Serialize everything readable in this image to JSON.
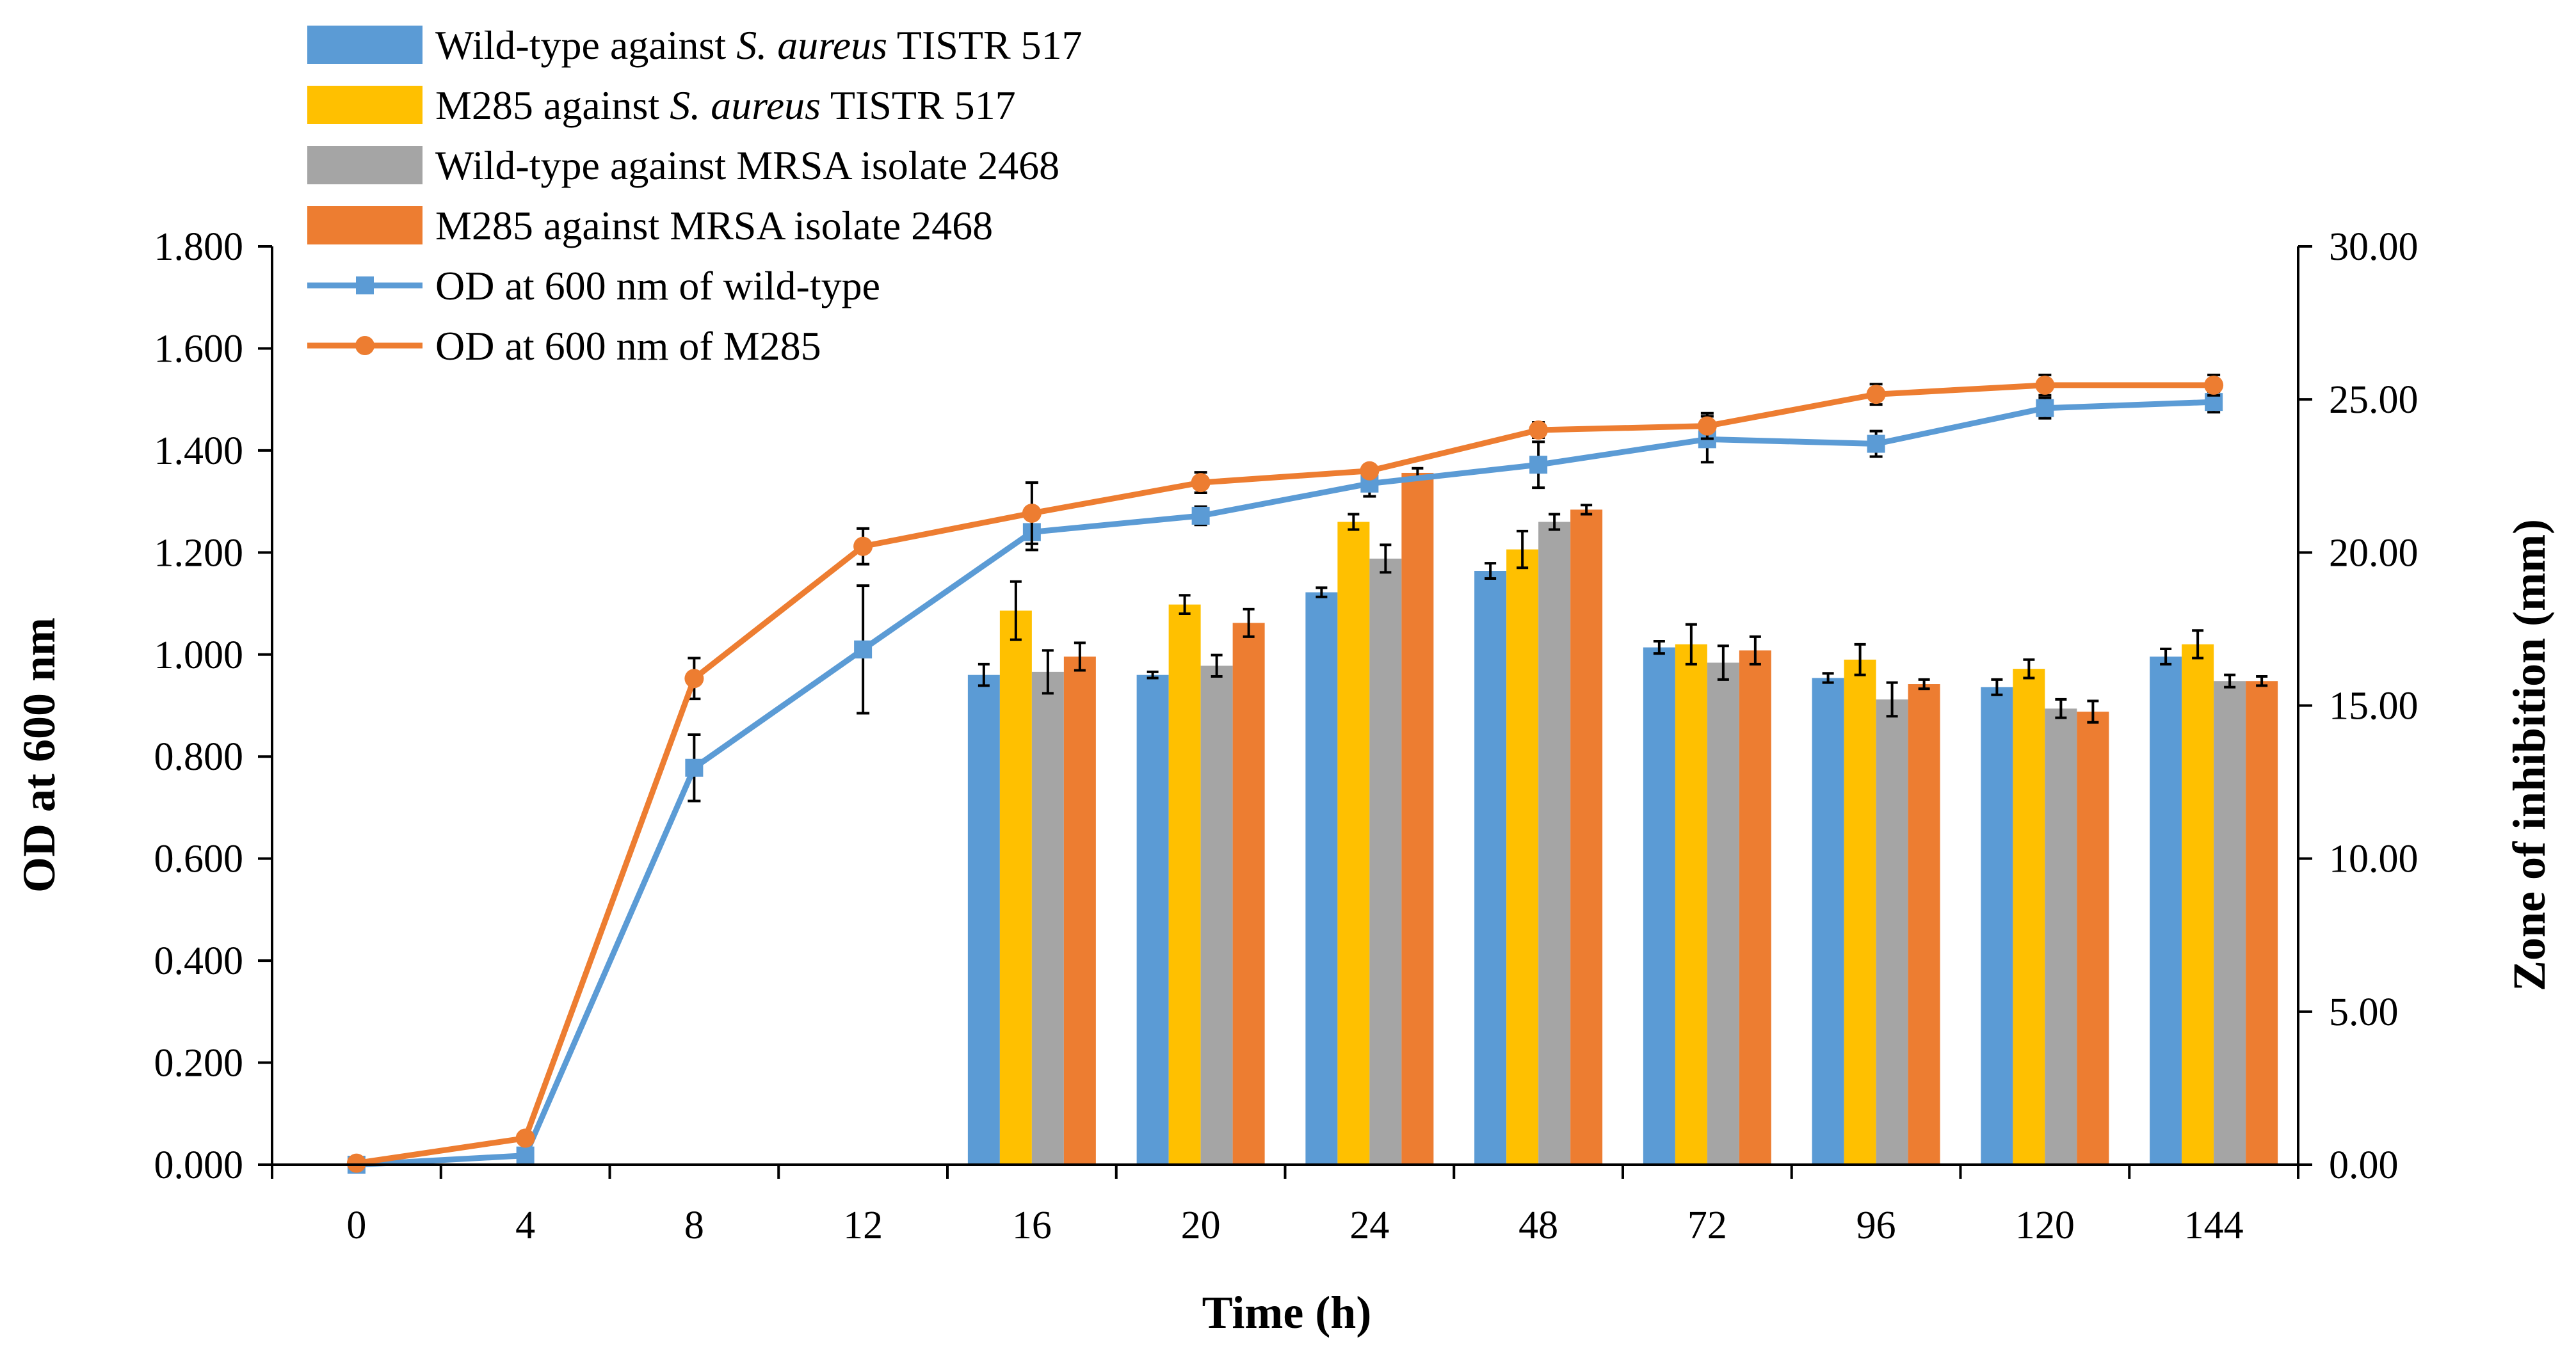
{
  "chart_data": {
    "type": "bar+line",
    "categories": [
      "0",
      "4",
      "8",
      "12",
      "16",
      "20",
      "24",
      "48",
      "72",
      "96",
      "120",
      "144"
    ],
    "xlabel": "Time (h)",
    "ylabel": "OD at 600 nm",
    "y2label": "Zone of inhibition (mm)",
    "ylim": [
      0,
      1.8
    ],
    "y2lim": [
      0,
      30
    ],
    "yticks": [
      "0.000",
      "0.200",
      "0.400",
      "0.600",
      "0.800",
      "1.000",
      "1.200",
      "1.400",
      "1.600",
      "1.800"
    ],
    "y2ticks": [
      "0.00",
      "5.00",
      "10.00",
      "15.00",
      "20.00",
      "25.00",
      "30.00"
    ],
    "legend_position": "top-left",
    "bar_series": [
      {
        "name_parts": [
          "Wild-type against ",
          "S. aureus",
          " TISTR 517"
        ],
        "color": "#5B9BD5",
        "values": [
          null,
          null,
          null,
          null,
          16.0,
          16.0,
          18.7,
          19.4,
          16.9,
          15.9,
          15.6,
          16.6
        ],
        "errors": [
          null,
          null,
          null,
          null,
          0.35,
          0.1,
          0.15,
          0.25,
          0.2,
          0.15,
          0.25,
          0.25
        ]
      },
      {
        "name_parts": [
          "M285 against ",
          "S. aureus",
          " TISTR 517"
        ],
        "color": "#FFC000",
        "values": [
          null,
          null,
          null,
          null,
          18.1,
          18.3,
          21.0,
          20.1,
          17.0,
          16.5,
          16.2,
          17.0
        ],
        "errors": [
          null,
          null,
          null,
          null,
          0.95,
          0.3,
          0.25,
          0.6,
          0.65,
          0.5,
          0.3,
          0.45
        ]
      },
      {
        "name_parts": [
          "Wild-type against MRSA isolate 2468"
        ],
        "color": "#A5A5A5",
        "values": [
          null,
          null,
          null,
          null,
          16.1,
          16.3,
          19.8,
          21.0,
          16.4,
          15.2,
          14.9,
          15.8
        ],
        "errors": [
          null,
          null,
          null,
          null,
          0.7,
          0.35,
          0.45,
          0.25,
          0.55,
          0.55,
          0.3,
          0.2
        ]
      },
      {
        "name_parts": [
          "M285 against MRSA isolate 2468"
        ],
        "color": "#ED7D31",
        "values": [
          null,
          null,
          null,
          null,
          16.6,
          17.7,
          22.6,
          21.4,
          16.8,
          15.7,
          14.8,
          15.8
        ],
        "errors": [
          null,
          null,
          null,
          null,
          0.45,
          0.45,
          0.15,
          0.15,
          0.45,
          0.15,
          0.35,
          0.15
        ]
      }
    ],
    "line_series": [
      {
        "name": "OD at 600 nm of wild-type",
        "color": "#5B9BD5",
        "marker": "square",
        "values": [
          0.0,
          0.018,
          0.778,
          1.01,
          1.24,
          1.272,
          1.335,
          1.372,
          1.422,
          1.413,
          1.483,
          1.495
        ],
        "errors": [
          0.01,
          0.012,
          0.065,
          0.125,
          0.035,
          0.018,
          0.025,
          0.045,
          0.045,
          0.025,
          0.02,
          0.02
        ]
      },
      {
        "name": "OD at 600 nm of M285",
        "color": "#ED7D31",
        "marker": "circle",
        "values": [
          0.003,
          0.052,
          0.953,
          1.212,
          1.277,
          1.337,
          1.36,
          1.44,
          1.448,
          1.51,
          1.528,
          1.528
        ],
        "errors": [
          0.005,
          0.005,
          0.04,
          0.035,
          0.06,
          0.02,
          0.01,
          0.015,
          0.025,
          0.02,
          0.02,
          0.02
        ]
      }
    ]
  }
}
